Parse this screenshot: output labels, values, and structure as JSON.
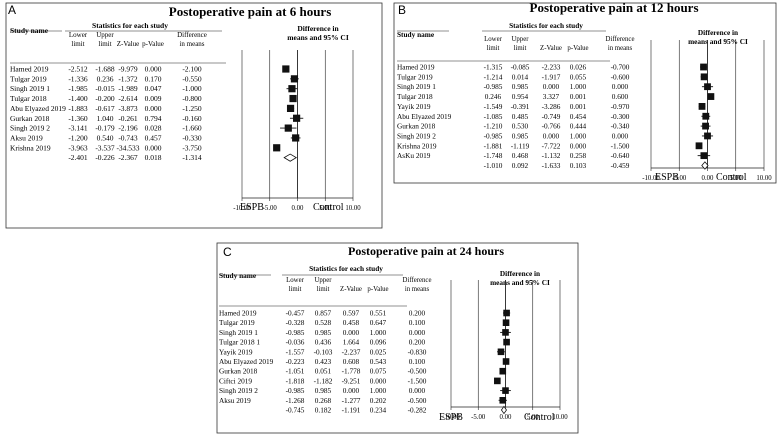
{
  "chart_data": [
    {
      "type": "forest",
      "panel": "A",
      "title": "Postoperative pain at 6 hours",
      "headers": {
        "study": "Study name",
        "stats": "Statistics for each study",
        "lower": [
          "Lower",
          "limit"
        ],
        "upper": [
          "Upper",
          "limit"
        ],
        "z": "Z-Value",
        "p": "p-Value",
        "diff": [
          "Difference",
          "in means"
        ],
        "ci": [
          "Difference in",
          "means and 95% CI"
        ]
      },
      "studies": [
        {
          "name": "Hamed 2019",
          "lower": "-2.512",
          "upper": "-1.688",
          "z": "-9.979",
          "p": "0.000",
          "diff": "-2.100",
          "est": -2.1,
          "lo": -2.512,
          "hi": -1.688
        },
        {
          "name": "Tulgar 2019",
          "lower": "-1.336",
          "upper": "0.236",
          "z": "-1.372",
          "p": "0.170",
          "diff": "-0.550",
          "est": -0.55,
          "lo": -1.336,
          "hi": 0.236
        },
        {
          "name": "Singh 2019 1",
          "lower": "-1.985",
          "upper": "-0.015",
          "z": "-1.989",
          "p": "0.047",
          "diff": "-1.000",
          "est": -1.0,
          "lo": -1.985,
          "hi": -0.015
        },
        {
          "name": "Tulgar 2018",
          "lower": "-1.400",
          "upper": "-0.200",
          "z": "-2.614",
          "p": "0.009",
          "diff": "-0.800",
          "est": -0.8,
          "lo": -1.4,
          "hi": -0.2
        },
        {
          "name": "Abu Elyazed 2019",
          "lower": "-1.883",
          "upper": "-0.617",
          "z": "-3.873",
          "p": "0.000",
          "diff": "-1.250",
          "est": -1.25,
          "lo": -1.883,
          "hi": -0.617
        },
        {
          "name": "Gurkan 2018",
          "lower": "-1.360",
          "upper": "1.040",
          "z": "-0.261",
          "p": "0.794",
          "diff": "-0.160",
          "est": -0.16,
          "lo": -1.36,
          "hi": 1.04
        },
        {
          "name": "Singh 2019 2",
          "lower": "-3.141",
          "upper": "-0.179",
          "z": "-2.196",
          "p": "0.028",
          "diff": "-1.660",
          "est": -1.66,
          "lo": -3.141,
          "hi": -0.179
        },
        {
          "name": "Aksu 2019",
          "lower": "-1.200",
          "upper": "0.540",
          "z": "-0.743",
          "p": "0.457",
          "diff": "-0.330",
          "est": -0.33,
          "lo": -1.2,
          "hi": 0.54
        },
        {
          "name": "Krishna 2019",
          "lower": "-3.963",
          "upper": "-3.537",
          "z": "-34.533",
          "p": "0.000",
          "diff": "-3.750",
          "est": -3.75,
          "lo": -3.963,
          "hi": -3.537
        }
      ],
      "pooled": {
        "lower": "-2.401",
        "upper": "-0.226",
        "z": "-2.367",
        "p": "0.018",
        "diff": "-1.314",
        "est": -1.314,
        "lo": -2.401,
        "hi": -0.226
      },
      "ticks": [
        "-10.00",
        "-5.00",
        "0.00",
        "5.00",
        "10.00"
      ],
      "xlim": [
        -10,
        10
      ],
      "left_label": "ESPB",
      "right_label": "Control"
    },
    {
      "type": "forest",
      "panel": "B",
      "title": "Postoperative pain at 12 hours",
      "headers": {
        "study": "Study name",
        "stats": "Statistics for each study",
        "lower": [
          "Lower",
          "limit"
        ],
        "upper": [
          "Upper",
          "limit"
        ],
        "z": "Z-Value",
        "p": "p-Value",
        "diff": [
          "Difference",
          "in means"
        ],
        "ci": [
          "Difference in",
          "means and 95% CI"
        ]
      },
      "studies": [
        {
          "name": "Hamed 2019",
          "lower": "-1.315",
          "upper": "-0.085",
          "z": "-2.233",
          "p": "0.026",
          "diff": "-0.700",
          "est": -0.7,
          "lo": -1.315,
          "hi": -0.085
        },
        {
          "name": "Tulgar 2019",
          "lower": "-1.214",
          "upper": "0.014",
          "z": "-1.917",
          "p": "0.055",
          "diff": "-0.600",
          "est": -0.6,
          "lo": -1.214,
          "hi": 0.014
        },
        {
          "name": "Singh 2019 1",
          "lower": "-0.985",
          "upper": "0.985",
          "z": "0.000",
          "p": "1.000",
          "diff": "0.000",
          "est": 0.0,
          "lo": -0.985,
          "hi": 0.985
        },
        {
          "name": "Tulgar 2018",
          "lower": "0.246",
          "upper": "0.954",
          "z": "3.327",
          "p": "0.001",
          "diff": "0.600",
          "est": 0.6,
          "lo": 0.246,
          "hi": 0.954
        },
        {
          "name": "Yayik 2019",
          "lower": "-1.549",
          "upper": "-0.391",
          "z": "-3.286",
          "p": "0.001",
          "diff": "-0.970",
          "est": -0.97,
          "lo": -1.549,
          "hi": -0.391
        },
        {
          "name": "Abu Elyazed 2019",
          "lower": "-1.085",
          "upper": "0.485",
          "z": "-0.749",
          "p": "0.454",
          "diff": "-0.300",
          "est": -0.3,
          "lo": -1.085,
          "hi": 0.485
        },
        {
          "name": "Gurkan 2018",
          "lower": "-1.210",
          "upper": "0.530",
          "z": "-0.766",
          "p": "0.444",
          "diff": "-0.340",
          "est": -0.34,
          "lo": -1.21,
          "hi": 0.53
        },
        {
          "name": "Singh 2019 2",
          "lower": "-0.985",
          "upper": "0.985",
          "z": "0.000",
          "p": "1.000",
          "diff": "0.000",
          "est": 0.0,
          "lo": -0.985,
          "hi": 0.985
        },
        {
          "name": "Krishna 2019",
          "lower": "-1.881",
          "upper": "-1.119",
          "z": "-7.722",
          "p": "0.000",
          "diff": "-1.500",
          "est": -1.5,
          "lo": -1.881,
          "hi": -1.119
        },
        {
          "name": "AsKu 2019",
          "lower": "-1.748",
          "upper": "0.468",
          "z": "-1.132",
          "p": "0.258",
          "diff": "-0.640",
          "est": -0.64,
          "lo": -1.748,
          "hi": 0.468
        }
      ],
      "pooled": {
        "lower": "-1.010",
        "upper": "0.092",
        "z": "-1.633",
        "p": "0.103",
        "diff": "-0.459",
        "est": -0.459,
        "lo": -1.01,
        "hi": 0.092
      },
      "ticks": [
        "-10.00",
        "-5.00",
        "0.00",
        "5.00",
        "10.00"
      ],
      "xlim": [
        -10,
        10
      ],
      "left_label": "ESPB",
      "right_label": "Control"
    },
    {
      "type": "forest",
      "panel": "C",
      "title": "Postoperative pain at 24 hours",
      "headers": {
        "study": "Study name",
        "stats": "Statistics for each study",
        "lower": [
          "Lower",
          "limit"
        ],
        "upper": [
          "Upper",
          "limit"
        ],
        "z": "Z-Value",
        "p": "p-Value",
        "diff": [
          "Difference",
          "in means"
        ],
        "ci": [
          "Difference in",
          "means and 95% CI"
        ]
      },
      "studies": [
        {
          "name": "Hamed 2019",
          "lower": "-0.457",
          "upper": "0.857",
          "z": "0.597",
          "p": "0.551",
          "diff": "0.200",
          "est": 0.2,
          "lo": -0.457,
          "hi": 0.857
        },
        {
          "name": "Tulgar 2019",
          "lower": "-0.328",
          "upper": "0.528",
          "z": "0.458",
          "p": "0.647",
          "diff": "0.100",
          "est": 0.1,
          "lo": -0.328,
          "hi": 0.528
        },
        {
          "name": "Singh 2019 1",
          "lower": "-0.985",
          "upper": "0.985",
          "z": "0.000",
          "p": "1.000",
          "diff": "0.000",
          "est": 0.0,
          "lo": -0.985,
          "hi": 0.985
        },
        {
          "name": "Tulgar 2018 1",
          "lower": "-0.036",
          "upper": "0.436",
          "z": "1.664",
          "p": "0.096",
          "diff": "0.200",
          "est": 0.2,
          "lo": -0.036,
          "hi": 0.436
        },
        {
          "name": "Yayik 2019",
          "lower": "-1.557",
          "upper": "-0.103",
          "z": "-2.237",
          "p": "0.025",
          "diff": "-0.830",
          "est": -0.83,
          "lo": -1.557,
          "hi": -0.103
        },
        {
          "name": "Abu Elyazed 2019",
          "lower": "-0.223",
          "upper": "0.423",
          "z": "0.608",
          "p": "0.543",
          "diff": "0.100",
          "est": 0.1,
          "lo": -0.223,
          "hi": 0.423
        },
        {
          "name": "Gurkan 2018",
          "lower": "-1.051",
          "upper": "0.051",
          "z": "-1.778",
          "p": "0.075",
          "diff": "-0.500",
          "est": -0.5,
          "lo": -1.051,
          "hi": 0.051
        },
        {
          "name": "Ciftci 2019",
          "lower": "-1.818",
          "upper": "-1.182",
          "z": "-9.251",
          "p": "0.000",
          "diff": "-1.500",
          "est": -1.5,
          "lo": -1.818,
          "hi": -1.182
        },
        {
          "name": "Singh 2019 2",
          "lower": "-0.985",
          "upper": "0.985",
          "z": "0.000",
          "p": "1.000",
          "diff": "0.000",
          "est": 0.0,
          "lo": -0.985,
          "hi": 0.985
        },
        {
          "name": "Aksu 2019",
          "lower": "-1.268",
          "upper": "0.268",
          "z": "-1.277",
          "p": "0.202",
          "diff": "-0.500",
          "est": -0.5,
          "lo": -1.268,
          "hi": 0.268
        }
      ],
      "pooled": {
        "lower": "-0.745",
        "upper": "0.182",
        "z": "-1.191",
        "p": "0.234",
        "diff": "-0.282",
        "est": -0.282,
        "lo": -0.745,
        "hi": 0.182
      },
      "ticks": [
        "-10.00",
        "-5.00",
        "0.00",
        "5.00",
        "10.00"
      ],
      "xlim": [
        -10,
        10
      ],
      "left_label": "ESPB",
      "right_label": "Control"
    }
  ]
}
